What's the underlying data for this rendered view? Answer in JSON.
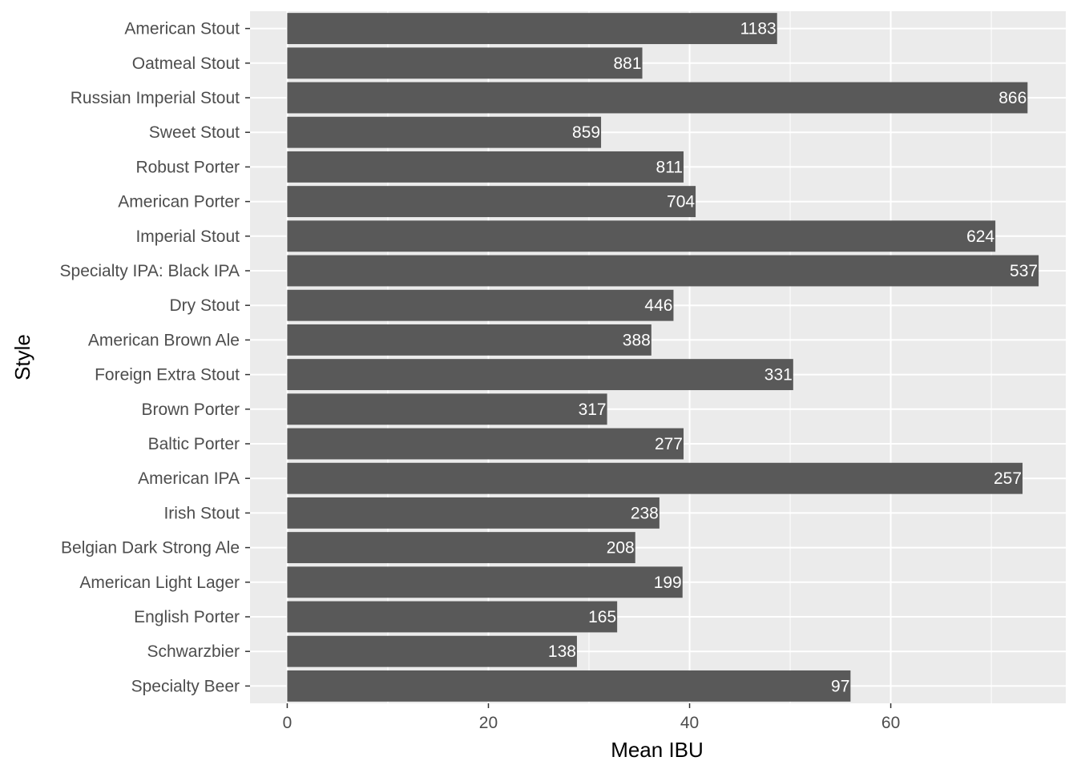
{
  "chart_data": {
    "type": "bar",
    "orientation": "horizontal",
    "xlabel": "Mean IBU",
    "ylabel": "Style",
    "xlim": [
      -3.7,
      77.4
    ],
    "x_ticks": [
      0,
      20,
      40,
      60
    ],
    "grid": true,
    "bar_color": "#595959",
    "panel_color": "#ebebeb",
    "grid_color": "#ffffff",
    "categories": [
      "American Stout",
      "Oatmeal Stout",
      "Russian Imperial Stout",
      "Sweet Stout",
      "Robust Porter",
      "American Porter",
      "Imperial Stout",
      "Specialty IPA: Black IPA",
      "Dry Stout",
      "American Brown Ale",
      "Foreign Extra Stout",
      "Brown Porter",
      "Baltic Porter",
      "American IPA",
      "Irish Stout",
      "Belgian Dark Strong Ale",
      "American Light Lager",
      "English Porter",
      "Schwarzbier",
      "Specialty Beer"
    ],
    "values": [
      48.7,
      35.3,
      73.6,
      31.2,
      39.4,
      40.6,
      70.4,
      74.7,
      38.4,
      36.2,
      50.3,
      31.8,
      39.4,
      73.1,
      37.0,
      34.6,
      39.3,
      32.8,
      28.8,
      56.0
    ],
    "data_labels": [
      "1183",
      "881",
      "866",
      "859",
      "811",
      "704",
      "624",
      "537",
      "446",
      "388",
      "331",
      "317",
      "277",
      "257",
      "238",
      "208",
      "199",
      "165",
      "138",
      "97"
    ]
  }
}
